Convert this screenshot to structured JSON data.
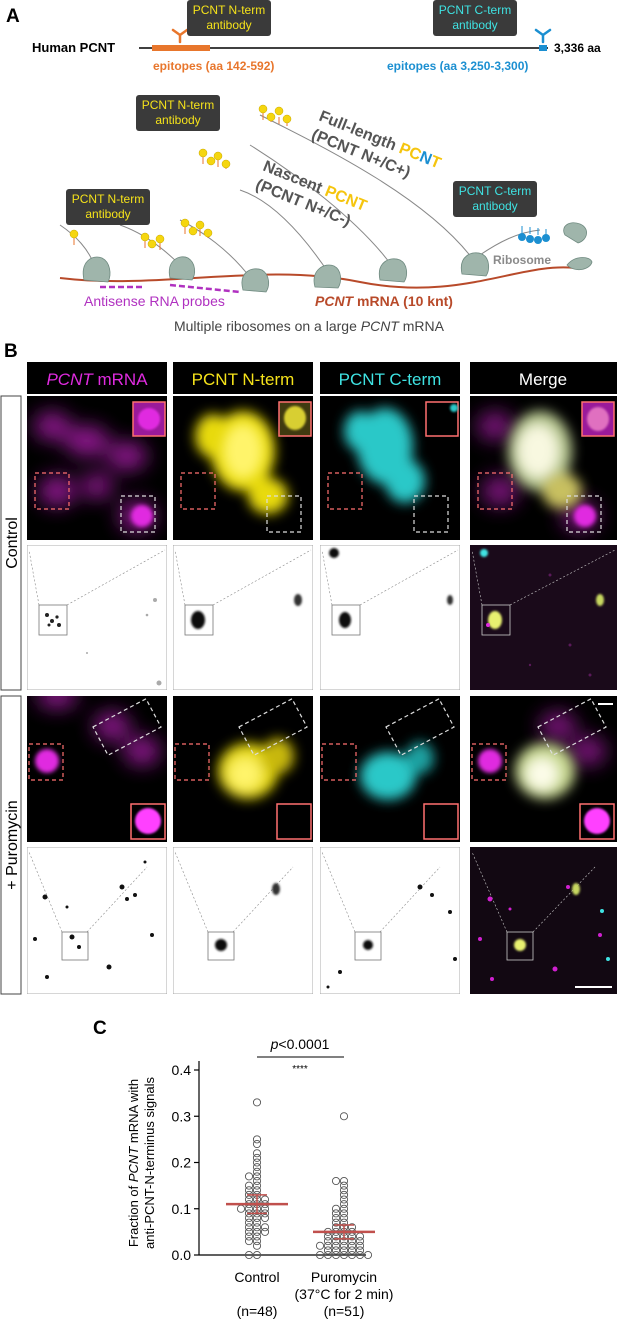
{
  "panel_a": {
    "letter": "A",
    "gene_label": "Human PCNT",
    "length_label": "3,336 aa",
    "nterm_antibody_top": "PCNT N-term\nantibody",
    "cterm_antibody_top": "PCNT C-term\nantibody",
    "nterm_epitopes": "epitopes (aa 142-592)",
    "cterm_epitopes": "epitopes (aa 3,250-3,300)",
    "nterm_antibody_mid": "PCNT N-term\nantibody",
    "nterm_antibody_left": "PCNT N-term\nantibody",
    "cterm_antibody_right": "PCNT C-term\nantibody",
    "full_length_line1": "Full-length",
    "full_length_pc": "PC",
    "full_length_n": "N",
    "full_length_t": "T",
    "full_length_line2": "(PCNT N+/C+)",
    "nascent_line1": "Nascent",
    "nascent_pcnt": "PCNT",
    "nascent_line2": "(PCNT N+/C-)",
    "ribosome_label": "Ribosome",
    "antisense_label": "Antisense RNA probes",
    "mrna_italic": "PCNT",
    "mrna_rest": " mRNA (10 knt)",
    "caption_prefix": "Multiple ribosomes on a large ",
    "caption_italic": "PCNT",
    "caption_suffix": " mRNA"
  },
  "panel_b": {
    "letter": "B",
    "column_headers": [
      {
        "italic": "PCNT",
        "rest": " mRNA",
        "color": "#e02be0"
      },
      {
        "italic": "",
        "rest": "PCNT N-term",
        "color": "#f5e21a"
      },
      {
        "italic": "",
        "rest": "PCNT C-term",
        "color": "#3fe3e3"
      },
      {
        "italic": "",
        "rest": "Merge",
        "color": "#ffffff"
      }
    ],
    "row_labels": [
      "Control",
      "+ Puromycin"
    ]
  },
  "panel_c": {
    "letter": "C",
    "y_label_line1_prefix": "Fraction of ",
    "y_label_line1_italic": "PCNT",
    "y_label_line1_suffix": " mRNA with",
    "y_label_line2": "anti-PCNT-N-terminus signals",
    "p_italic": "p",
    "p_rest": "<0.0001",
    "stars": "****",
    "x_tick_labels": [
      "Control",
      "Puromycin"
    ],
    "x_sub_labels": [
      "",
      "(37°C for 2 min)"
    ],
    "n_labels": [
      "(n=48)",
      "(n=51)"
    ]
  },
  "chart_data": {
    "type": "scatter",
    "y_ticks": [
      0.0,
      0.1,
      0.2,
      0.3,
      0.4
    ],
    "ylim": [
      0,
      0.4
    ],
    "categories": [
      "Control",
      "Puromycin"
    ],
    "series": [
      {
        "name": "Control",
        "mean": 0.11,
        "ci": [
          0.09,
          0.13
        ],
        "values": [
          0.33,
          0.25,
          0.24,
          0.22,
          0.21,
          0.2,
          0.19,
          0.18,
          0.17,
          0.17,
          0.16,
          0.15,
          0.15,
          0.14,
          0.14,
          0.13,
          0.13,
          0.12,
          0.12,
          0.12,
          0.11,
          0.11,
          0.11,
          0.1,
          0.1,
          0.1,
          0.1,
          0.09,
          0.09,
          0.09,
          0.08,
          0.08,
          0.08,
          0.07,
          0.07,
          0.06,
          0.06,
          0.06,
          0.05,
          0.05,
          0.05,
          0.04,
          0.04,
          0.03,
          0.03,
          0.02,
          0.0,
          0.0
        ]
      },
      {
        "name": "Puromycin",
        "mean": 0.05,
        "ci": [
          0.035,
          0.065
        ],
        "values": [
          0.3,
          0.16,
          0.16,
          0.15,
          0.14,
          0.13,
          0.12,
          0.11,
          0.1,
          0.1,
          0.09,
          0.09,
          0.08,
          0.08,
          0.07,
          0.07,
          0.06,
          0.06,
          0.06,
          0.05,
          0.05,
          0.05,
          0.05,
          0.04,
          0.04,
          0.04,
          0.04,
          0.04,
          0.03,
          0.03,
          0.03,
          0.03,
          0.03,
          0.02,
          0.02,
          0.02,
          0.02,
          0.02,
          0.02,
          0.01,
          0.01,
          0.01,
          0.01,
          0.01,
          0.0,
          0.0,
          0.0,
          0.0,
          0.0,
          0.0,
          0.0
        ]
      }
    ],
    "colors": {
      "points": "#555555",
      "mean_bar": "#c0504d"
    }
  }
}
